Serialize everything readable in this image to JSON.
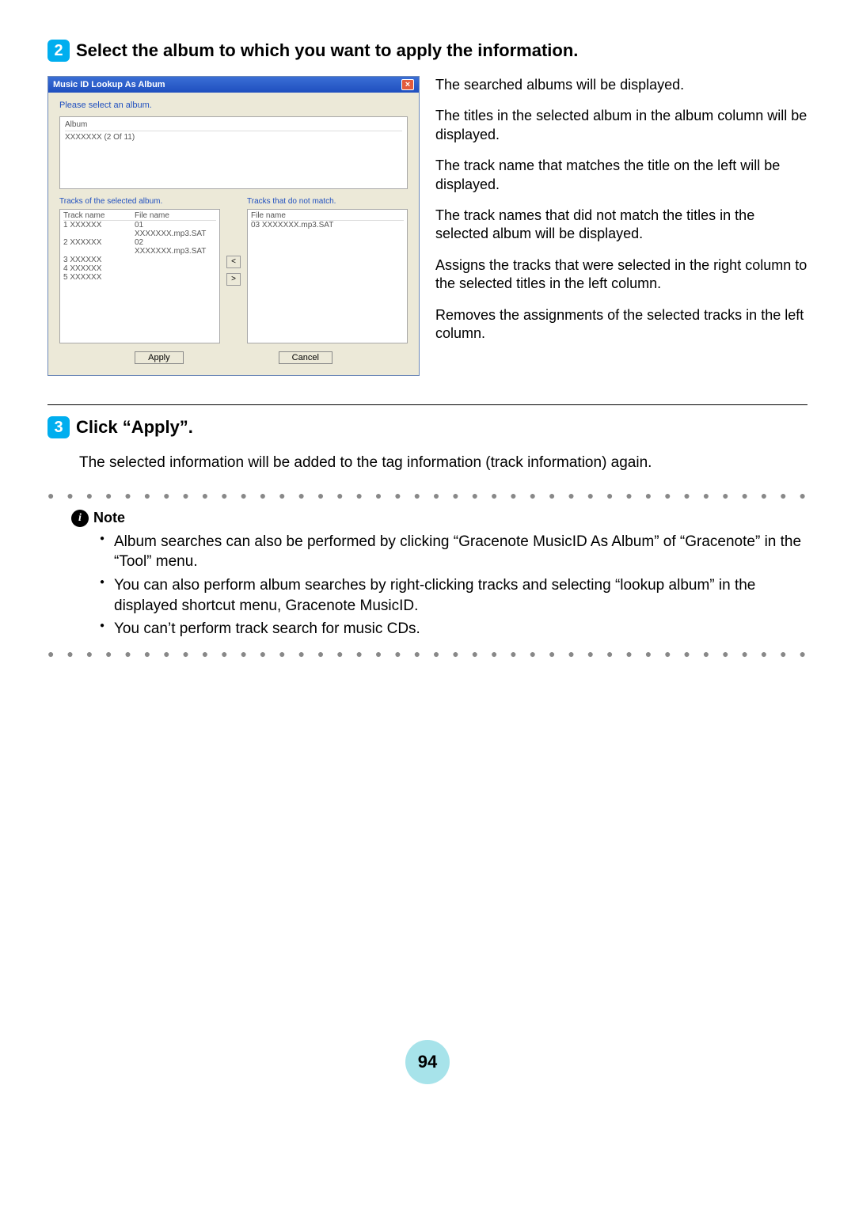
{
  "step2": {
    "number": "2",
    "title": "Select the album to which you want to apply the information."
  },
  "dialog": {
    "title": "Music ID Lookup As Album",
    "close": "×",
    "prompt": "Please select an album.",
    "album_header": "Album",
    "album_entry": "XXXXXXX (2 Of 11)",
    "tracks_left_label": "Tracks of the selected album.",
    "tracks_right_label": "Tracks that do not match.",
    "col_trackname": "Track name",
    "col_filename": "File name",
    "left_rows": [
      {
        "name": "1 XXXXXX",
        "file": "01 XXXXXXX.mp3.SAT"
      },
      {
        "name": "2 XXXXXX",
        "file": "02 XXXXXXX.mp3.SAT"
      },
      {
        "name": "3 XXXXXX",
        "file": ""
      },
      {
        "name": "4 XXXXXX",
        "file": ""
      },
      {
        "name": "5 XXXXXX",
        "file": ""
      }
    ],
    "right_rows": [
      {
        "file": "03 XXXXXXX.mp3.SAT"
      }
    ],
    "arrow_left": "<",
    "arrow_right": ">",
    "apply": "Apply",
    "cancel": "Cancel"
  },
  "callouts": {
    "c1": "The searched albums will be displayed.",
    "c2": "The titles in the selected album in the album column will be displayed.",
    "c3": "The track name that matches the title on the left will be displayed.",
    "c4": "The track names that did not match the titles in the selected album will be displayed.",
    "c5": "Assigns the tracks that were selected in the right column to the selected titles in the left column.",
    "c6": "Removes the assignments of the selected tracks in the left column."
  },
  "step3": {
    "number": "3",
    "title": "Click “Apply”.",
    "body": "The selected information will be added to the tag information (track information) again."
  },
  "note": {
    "label": "Note",
    "items": [
      "Album searches can also be performed by clicking “Gracenote MusicID As Album” of “Gracenote” in the “Tool” menu.",
      "You can also perform album searches by right-clicking tracks and selecting “lookup album” in the displayed shortcut menu, Gracenote MusicID.",
      "You can’t perform track search for music CDs."
    ]
  },
  "page_number": "94",
  "dots": "● ● ● ● ● ● ● ● ● ● ● ● ● ● ● ● ● ● ● ● ● ● ● ● ● ● ● ● ● ● ● ● ● ● ● ● ● ● ● ● ● ● ● ● ● ● ● ● ● ● ● ● ● ● ● ● ● ● ● ● ● ● ● ● ● ● ● ●"
}
